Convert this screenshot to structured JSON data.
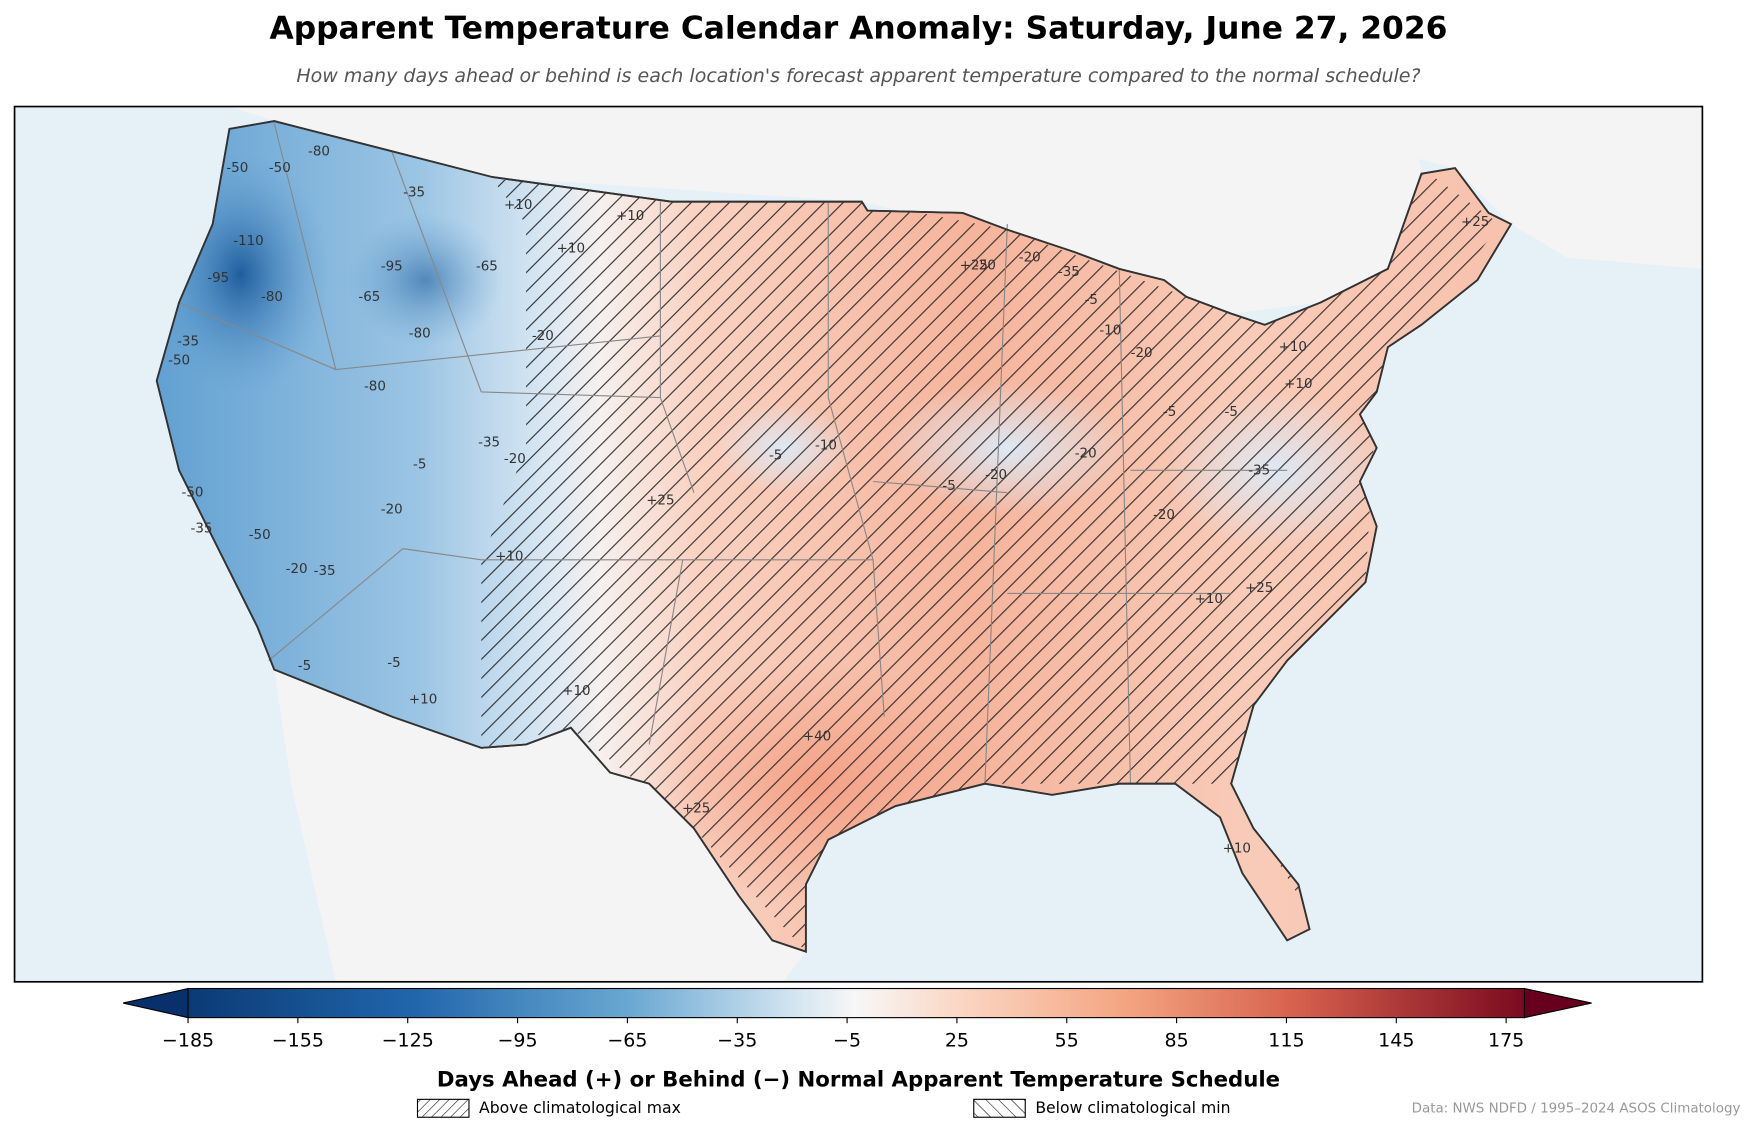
{
  "title": "Apparent Temperature Calendar Anomaly: Saturday, June 27, 2026",
  "subtitle": "How many days ahead or behind is each location's forecast apparent temperature compared to the normal schedule?",
  "colorbar": {
    "label": "Days Ahead (+) or Behind (−) Normal Apparent Temperature Schedule",
    "lim": [
      -185,
      180
    ],
    "ticks": [
      {
        "value": -185,
        "label": "−185"
      },
      {
        "value": -155,
        "label": "−155"
      },
      {
        "value": -125,
        "label": "−125"
      },
      {
        "value": -95,
        "label": "−95"
      },
      {
        "value": -65,
        "label": "−65"
      },
      {
        "value": -35,
        "label": "−35"
      },
      {
        "value": -5,
        "label": "−5"
      },
      25,
      55,
      85,
      115,
      145,
      175
    ]
  },
  "legend": [
    {
      "label": "Above climatological max"
    },
    {
      "label": "Below climatological min"
    }
  ],
  "credit": "Data: NWS NDFD / 1995–2024 ASOS Climatology",
  "contour_labels": [
    "-80",
    "-50",
    "-50",
    "-110",
    "-95",
    "-80",
    "-95",
    "-65",
    "-80",
    "-80",
    "-35",
    "-65",
    "-50",
    "-35",
    "-50",
    "-35",
    "-35",
    "-5",
    "-20",
    "-50",
    "-20",
    "-35",
    "-5",
    "+10",
    "+10",
    "+10",
    "-20",
    "-20",
    "+10",
    "-5",
    "+25",
    "+10",
    "+10",
    "-5",
    "-10",
    "+25",
    "+40",
    "+25",
    "-20",
    "-35",
    "-5",
    "-10",
    "-20",
    "-5",
    "-20",
    "-20",
    "-5",
    "-20",
    "-20",
    "+10",
    "-35",
    "-5",
    "+25",
    "+10",
    "+10",
    "+25",
    "+10"
  ]
}
